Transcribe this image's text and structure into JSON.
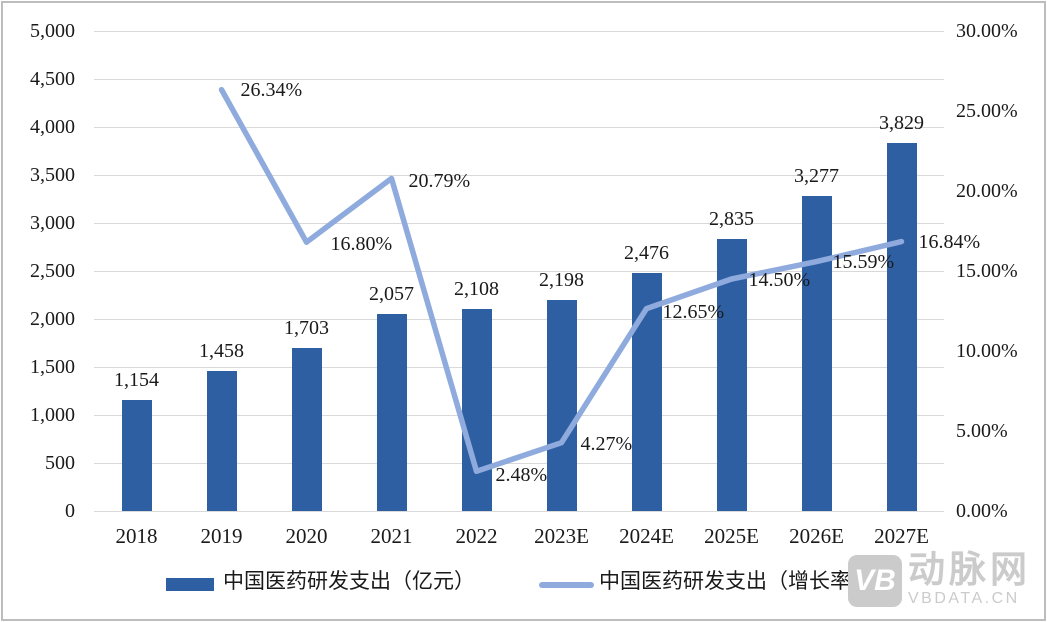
{
  "chart_data": {
    "type": "combo-bar-line",
    "title": "",
    "categories": [
      "2018",
      "2019",
      "2020",
      "2021",
      "2022",
      "2023E",
      "2024E",
      "2025E",
      "2026E",
      "2027E"
    ],
    "series": [
      {
        "name": "中国医药研发支出（亿元）",
        "type": "bar",
        "axis": "left",
        "values": [
          1154,
          1458,
          1703,
          2057,
          2108,
          2198,
          2476,
          2835,
          3277,
          3829
        ],
        "labels": [
          "1,154",
          "1,458",
          "1,703",
          "2,057",
          "2,108",
          "2,198",
          "2,476",
          "2,835",
          "3,277",
          "3,829"
        ]
      },
      {
        "name": "中国医药研发支出（增长率）",
        "type": "line",
        "axis": "right",
        "start_index": 1,
        "values": [
          26.34,
          16.8,
          20.79,
          2.48,
          4.27,
          12.65,
          14.5,
          15.59,
          16.84
        ],
        "labels": [
          "26.34%",
          "16.80%",
          "20.79%",
          "2.48%",
          "4.27%",
          "12.65%",
          "14.50%",
          "15.59%",
          "16.84%"
        ]
      }
    ],
    "left_axis": {
      "min": 0,
      "max": 5000,
      "step": 500,
      "tick_labels": [
        "0",
        "500",
        "1,000",
        "1,500",
        "2,000",
        "2,500",
        "3,000",
        "3,500",
        "4,000",
        "4,500",
        "5,000"
      ]
    },
    "right_axis": {
      "min": 0,
      "max": 30,
      "step": 5,
      "tick_labels": [
        "0.00%",
        "5.00%",
        "10.00%",
        "15.00%",
        "20.00%",
        "25.00%",
        "30.00%"
      ]
    },
    "grid": true,
    "legend_position": "bottom"
  },
  "legend": {
    "bar_label": "中国医药研发支出（亿元）",
    "line_label": "中国医药研发支出（增长率）"
  },
  "watermark": {
    "monogram": "VB",
    "name": "动脉网",
    "domain": "VBDATA.CN"
  },
  "colors": {
    "bar": "#2E5FA3",
    "line": "#8FAADC",
    "grid": "#D9D9D9",
    "text": "#1A1A1A",
    "watermark": "#CBCBCB",
    "frame_border": "#BDBDBD"
  }
}
